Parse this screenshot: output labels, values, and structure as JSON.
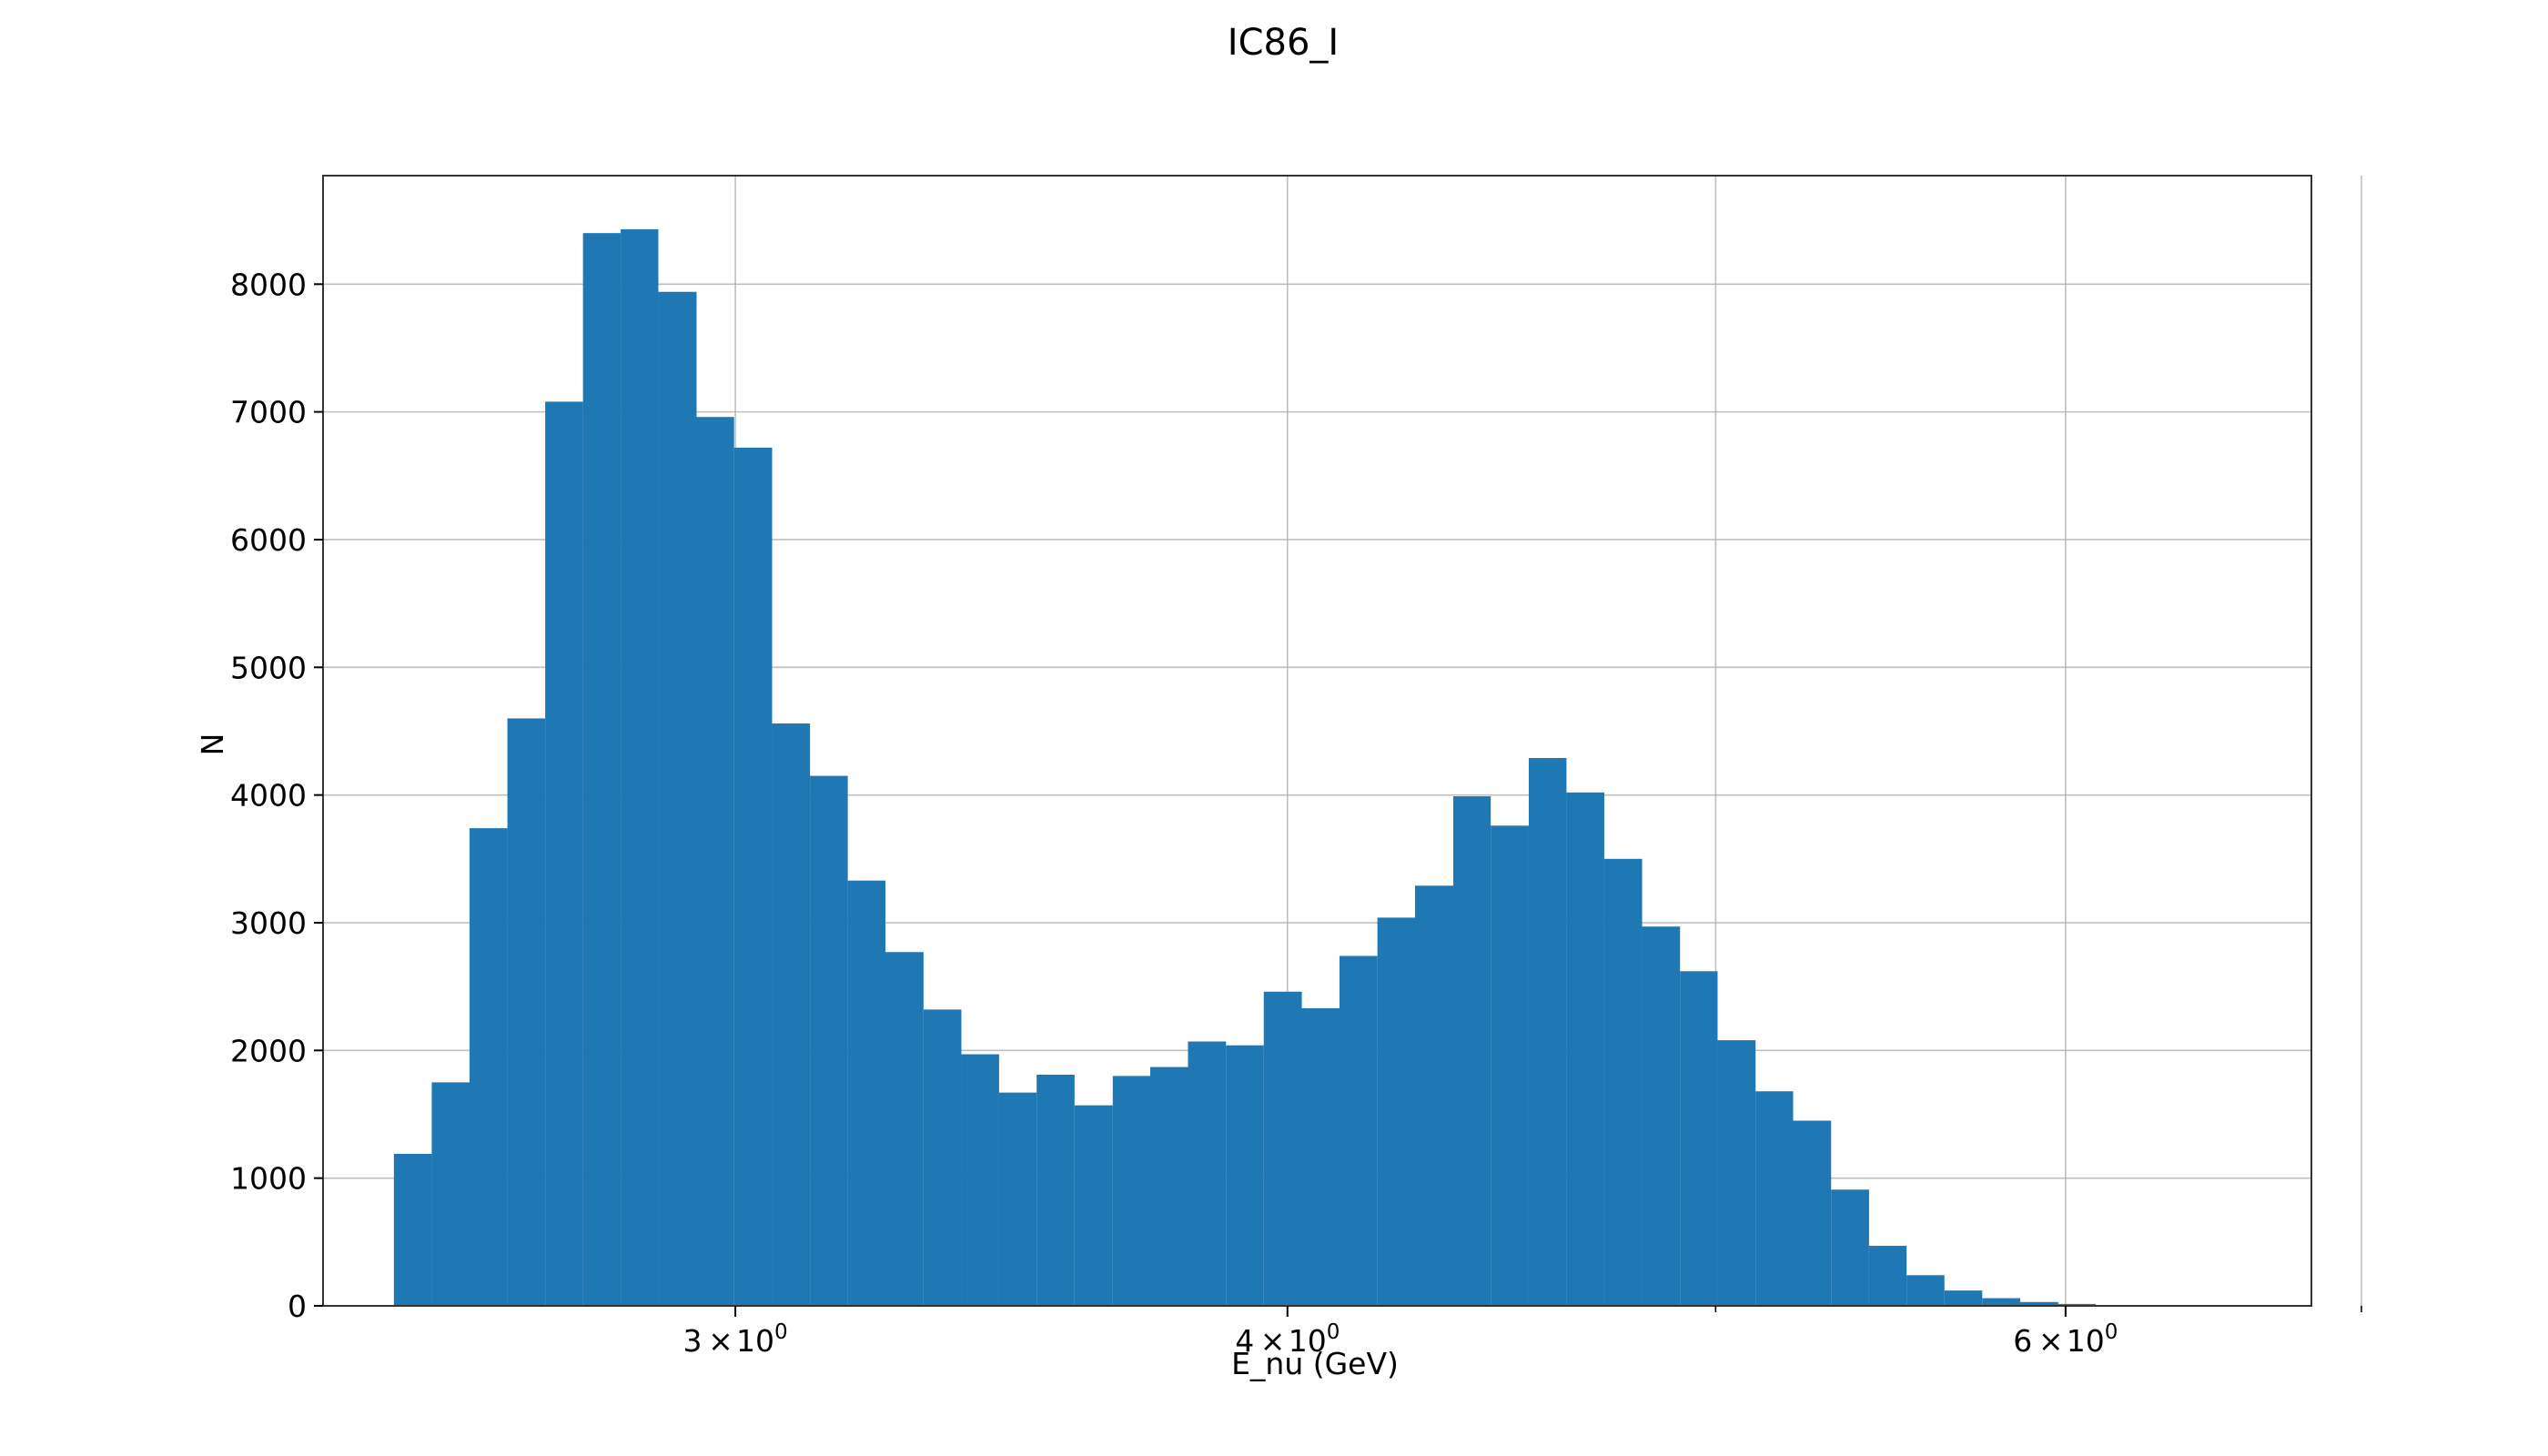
{
  "chart_data": {
    "type": "bar",
    "title": "IC86_I",
    "xlabel": "E_nu (GeV)",
    "ylabel": "N",
    "x_scale": "log",
    "xlim": [
      2.42,
      6.82
    ],
    "ylim": [
      0,
      8850
    ],
    "grid": true,
    "bar_color": "#1f77b4",
    "x_ticks": [
      {
        "value": 3,
        "mantissa": "3",
        "base": "10",
        "exponent": "0"
      },
      {
        "value": 4,
        "mantissa": "4",
        "base": "10",
        "exponent": "0"
      },
      {
        "value": 6,
        "mantissa": "6",
        "base": "10",
        "exponent": "0"
      }
    ],
    "x_minor_grid": [
      5,
      7
    ],
    "y_ticks": [
      "0",
      "1000",
      "2000",
      "3000",
      "4000",
      "5000",
      "6000",
      "7000",
      "8000"
    ],
    "bin_edges": [
      2.511,
      2.561,
      2.612,
      2.664,
      2.717,
      2.771,
      2.826,
      2.882,
      2.94,
      2.998,
      3.058,
      3.119,
      3.181,
      3.244,
      3.309,
      3.375,
      3.442,
      3.51,
      3.58,
      3.652,
      3.724,
      3.798,
      3.874,
      3.951,
      4.03,
      4.11,
      4.192,
      4.275,
      4.361,
      4.447,
      4.536,
      4.626,
      4.718,
      4.812,
      4.908,
      5.005,
      5.105,
      5.206,
      5.31,
      5.416,
      5.523,
      5.633,
      5.745,
      5.86,
      5.977,
      6.095,
      6.217,
      6.341,
      6.467,
      6.596
    ],
    "values": [
      1190,
      1750,
      3740,
      4600,
      7080,
      8400,
      8430,
      7940,
      6960,
      6720,
      4560,
      4150,
      3330,
      2770,
      2320,
      1970,
      1670,
      1810,
      1570,
      1800,
      1870,
      2070,
      2040,
      2460,
      2330,
      2740,
      3040,
      3290,
      3990,
      3760,
      4290,
      4020,
      3500,
      2970,
      2620,
      2080,
      1680,
      1450,
      910,
      470,
      240,
      120,
      60,
      30,
      15,
      7,
      3,
      1,
      1
    ]
  }
}
